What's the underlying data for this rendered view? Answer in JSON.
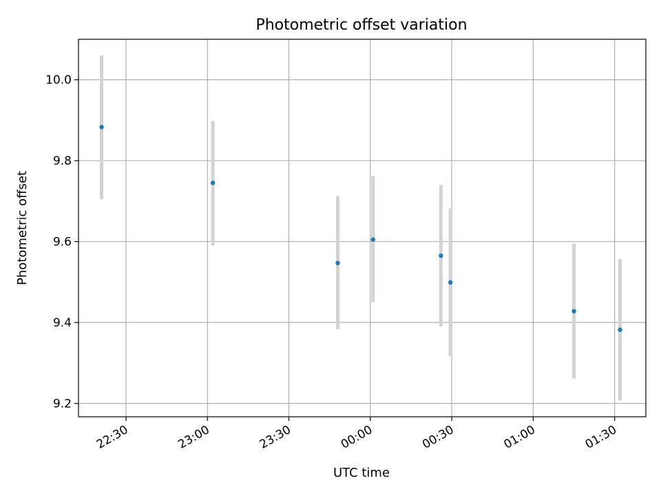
{
  "chart_data": {
    "type": "scatter",
    "title": "Photometric offset variation",
    "xlabel": "UTC time",
    "ylabel": "Photometric offset",
    "x_ticks": [
      "22:30",
      "23:00",
      "23:30",
      "00:00",
      "00:30",
      "01:00",
      "01:30"
    ],
    "x_tick_minutes": [
      1350,
      1380,
      1410,
      1440,
      1470,
      1500,
      1530
    ],
    "xlim_minutes": [
      1332.5,
      1541.5
    ],
    "y_ticks": [
      "9.2",
      "9.4",
      "9.6",
      "9.8",
      "10.0"
    ],
    "y_tick_values": [
      9.2,
      9.4,
      9.6,
      9.8,
      10.0
    ],
    "ylim": [
      9.167,
      10.1
    ],
    "grid": true,
    "colors": {
      "marker": "#1f77b4",
      "errorbar": "#d3d3d3",
      "grid": "#b0b0b0"
    },
    "points": [
      {
        "time": "22:21",
        "minute": 1341,
        "y": 9.883,
        "ylow": 9.705,
        "yhigh": 10.06
      },
      {
        "time": "23:02",
        "minute": 1382,
        "y": 9.745,
        "ylow": 9.59,
        "yhigh": 9.898
      },
      {
        "time": "23:48",
        "minute": 1428,
        "y": 9.547,
        "ylow": 9.383,
        "yhigh": 9.713
      },
      {
        "time": "00:01",
        "minute": 1441,
        "y": 9.605,
        "ylow": 9.45,
        "yhigh": 9.762
      },
      {
        "time": "00:26",
        "minute": 1466,
        "y": 9.565,
        "ylow": 9.39,
        "yhigh": 9.74
      },
      {
        "time": "00:29",
        "minute": 1469.5,
        "y": 9.499,
        "ylow": 9.317,
        "yhigh": 9.682
      },
      {
        "time": "01:15",
        "minute": 1515,
        "y": 9.428,
        "ylow": 9.262,
        "yhigh": 9.595
      },
      {
        "time": "01:32",
        "minute": 1532,
        "y": 9.382,
        "ylow": 9.207,
        "yhigh": 9.557
      }
    ]
  }
}
